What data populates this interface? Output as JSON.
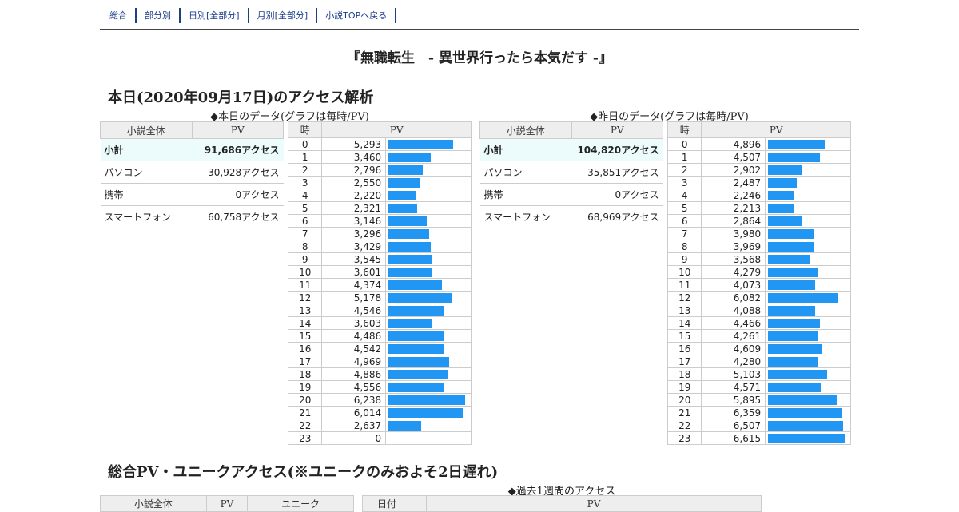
{
  "nav": [
    "総合",
    "部分別",
    "日別[全部分]",
    "月別[全部分]",
    "小説TOPへ戻る"
  ],
  "title": "『無職転生　- 異世界行ったら本気だす -』",
  "today": {
    "heading": "本日(2020年09月17日)のアクセス解析",
    "caption": "◆本日のデータ(グラフは毎時/PV)",
    "summary_headers": [
      "小説全体",
      "PV"
    ],
    "summary": [
      {
        "label": "小計",
        "value": "91,686アクセス"
      },
      {
        "label": "パソコン",
        "value": "30,928アクセス"
      },
      {
        "label": "携帯",
        "value": "0アクセス"
      },
      {
        "label": "スマートフォン",
        "value": "60,758アクセス"
      }
    ],
    "hourly_headers": [
      "時",
      "PV"
    ],
    "hourly": [
      5293,
      3460,
      2796,
      2550,
      2220,
      2321,
      3146,
      3296,
      3429,
      3545,
      3601,
      4374,
      5178,
      4546,
      3603,
      4486,
      4542,
      4969,
      4886,
      4556,
      6238,
      6014,
      2637,
      0
    ]
  },
  "yesterday": {
    "caption": "◆昨日のデータ(グラフは毎時/PV)",
    "summary_headers": [
      "小説全体",
      "PV"
    ],
    "summary": [
      {
        "label": "小計",
        "value": "104,820アクセス"
      },
      {
        "label": "パソコン",
        "value": "35,851アクセス"
      },
      {
        "label": "携帯",
        "value": "0アクセス"
      },
      {
        "label": "スマートフォン",
        "value": "68,969アクセス"
      }
    ],
    "hourly_headers": [
      "時",
      "PV"
    ],
    "hourly": [
      4896,
      4507,
      2902,
      2487,
      2246,
      2213,
      2864,
      3980,
      3969,
      3568,
      4279,
      4073,
      6082,
      4088,
      4466,
      4261,
      4609,
      4280,
      5103,
      4571,
      5895,
      6359,
      6507,
      6615
    ]
  },
  "total": {
    "heading": "総合PV・ユニークアクセス(※ユニークのみおよそ2日遅れ)",
    "caption": "◆過去1週間のアクセス",
    "left_headers": [
      "小説全体",
      "PV",
      "ユニーク"
    ],
    "right_headers": [
      "日付",
      "PV"
    ]
  },
  "colors": {
    "bar": "#2196f3",
    "subtotal_bg": "#ecfbfc",
    "nav": "#1c3f8a"
  }
}
